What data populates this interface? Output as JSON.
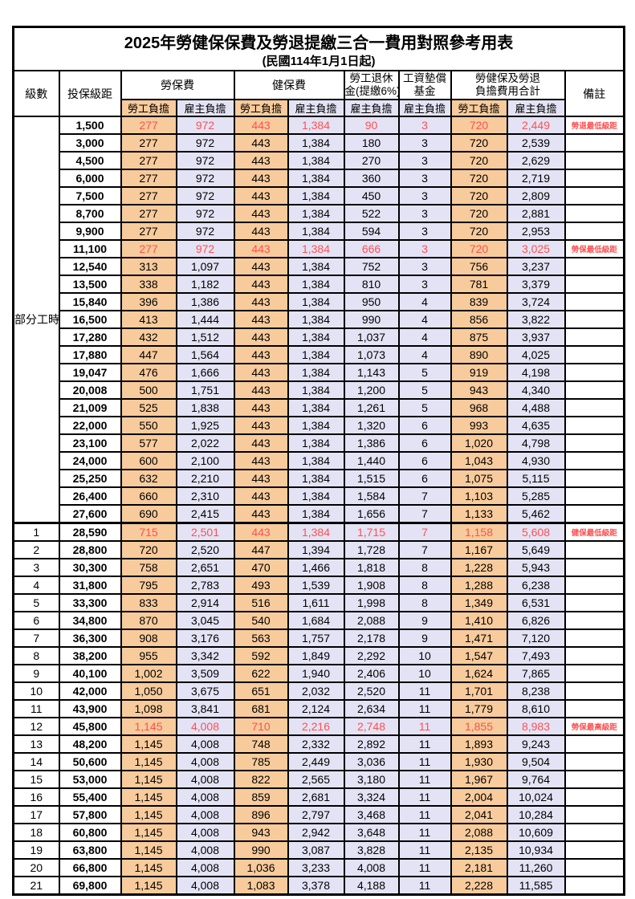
{
  "title": "2025年勞健保保費及勞退提繳三合一費用對照參考用表",
  "subtitle": "(民國114年1月1日起)",
  "colors": {
    "employee_fill": "#F8CB9C",
    "employer_fill": "#E4E3F5",
    "highlight_text": "#FF5050",
    "border": "#000000",
    "background": "#FFFFFF"
  },
  "header": {
    "level": "級數",
    "bracket": "投保級距",
    "labor_insurance": "勞保費",
    "health_insurance": "健保費",
    "pension_line1": "勞工退休",
    "pension_line2": "金(提繳6%)",
    "wage_fund_line1": "工資墊償",
    "wage_fund_line2": "基金",
    "total_line1": "勞健保及勞退",
    "total_line2": "負擔費用合計",
    "note": "備註",
    "employee_label": "勞工負擔",
    "employer_label": "雇主負擔"
  },
  "part_time_label": "部分工時",
  "part_time_rowspan": 23,
  "rows": [
    {
      "level": "",
      "bracket": "1,500",
      "values": [
        "277",
        "972",
        "443",
        "1,384",
        "90",
        "3",
        "720",
        "2,449"
      ],
      "note": "勞退最低級距",
      "highlight": true
    },
    {
      "level": "",
      "bracket": "3,000",
      "values": [
        "277",
        "972",
        "443",
        "1,384",
        "180",
        "3",
        "720",
        "2,539"
      ],
      "note": "",
      "highlight": false
    },
    {
      "level": "",
      "bracket": "4,500",
      "values": [
        "277",
        "972",
        "443",
        "1,384",
        "270",
        "3",
        "720",
        "2,629"
      ],
      "note": "",
      "highlight": false
    },
    {
      "level": "",
      "bracket": "6,000",
      "values": [
        "277",
        "972",
        "443",
        "1,384",
        "360",
        "3",
        "720",
        "2,719"
      ],
      "note": "",
      "highlight": false
    },
    {
      "level": "",
      "bracket": "7,500",
      "values": [
        "277",
        "972",
        "443",
        "1,384",
        "450",
        "3",
        "720",
        "2,809"
      ],
      "note": "",
      "highlight": false
    },
    {
      "level": "",
      "bracket": "8,700",
      "values": [
        "277",
        "972",
        "443",
        "1,384",
        "522",
        "3",
        "720",
        "2,881"
      ],
      "note": "",
      "highlight": false
    },
    {
      "level": "",
      "bracket": "9,900",
      "values": [
        "277",
        "972",
        "443",
        "1,384",
        "594",
        "3",
        "720",
        "2,953"
      ],
      "note": "",
      "highlight": false
    },
    {
      "level": "",
      "bracket": "11,100",
      "values": [
        "277",
        "972",
        "443",
        "1,384",
        "666",
        "3",
        "720",
        "3,025"
      ],
      "note": "勞保最低級距",
      "highlight": true
    },
    {
      "level": "",
      "bracket": "12,540",
      "values": [
        "313",
        "1,097",
        "443",
        "1,384",
        "752",
        "3",
        "756",
        "3,237"
      ],
      "note": "",
      "highlight": false
    },
    {
      "level": "",
      "bracket": "13,500",
      "values": [
        "338",
        "1,182",
        "443",
        "1,384",
        "810",
        "3",
        "781",
        "3,379"
      ],
      "note": "",
      "highlight": false
    },
    {
      "level": "",
      "bracket": "15,840",
      "values": [
        "396",
        "1,386",
        "443",
        "1,384",
        "950",
        "4",
        "839",
        "3,724"
      ],
      "note": "",
      "highlight": false
    },
    {
      "level": "",
      "bracket": "16,500",
      "values": [
        "413",
        "1,444",
        "443",
        "1,384",
        "990",
        "4",
        "856",
        "3,822"
      ],
      "note": "",
      "highlight": false
    },
    {
      "level": "",
      "bracket": "17,280",
      "values": [
        "432",
        "1,512",
        "443",
        "1,384",
        "1,037",
        "4",
        "875",
        "3,937"
      ],
      "note": "",
      "highlight": false
    },
    {
      "level": "",
      "bracket": "17,880",
      "values": [
        "447",
        "1,564",
        "443",
        "1,384",
        "1,073",
        "4",
        "890",
        "4,025"
      ],
      "note": "",
      "highlight": false
    },
    {
      "level": "",
      "bracket": "19,047",
      "values": [
        "476",
        "1,666",
        "443",
        "1,384",
        "1,143",
        "5",
        "919",
        "4,198"
      ],
      "note": "",
      "highlight": false
    },
    {
      "level": "",
      "bracket": "20,008",
      "values": [
        "500",
        "1,751",
        "443",
        "1,384",
        "1,200",
        "5",
        "943",
        "4,340"
      ],
      "note": "",
      "highlight": false
    },
    {
      "level": "",
      "bracket": "21,009",
      "values": [
        "525",
        "1,838",
        "443",
        "1,384",
        "1,261",
        "5",
        "968",
        "4,488"
      ],
      "note": "",
      "highlight": false
    },
    {
      "level": "",
      "bracket": "22,000",
      "values": [
        "550",
        "1,925",
        "443",
        "1,384",
        "1,320",
        "6",
        "993",
        "4,635"
      ],
      "note": "",
      "highlight": false
    },
    {
      "level": "",
      "bracket": "23,100",
      "values": [
        "577",
        "2,022",
        "443",
        "1,384",
        "1,386",
        "6",
        "1,020",
        "4,798"
      ],
      "note": "",
      "highlight": false
    },
    {
      "level": "",
      "bracket": "24,000",
      "values": [
        "600",
        "2,100",
        "443",
        "1,384",
        "1,440",
        "6",
        "1,043",
        "4,930"
      ],
      "note": "",
      "highlight": false
    },
    {
      "level": "",
      "bracket": "25,250",
      "values": [
        "632",
        "2,210",
        "443",
        "1,384",
        "1,515",
        "6",
        "1,075",
        "5,115"
      ],
      "note": "",
      "highlight": false
    },
    {
      "level": "",
      "bracket": "26,400",
      "values": [
        "660",
        "2,310",
        "443",
        "1,384",
        "1,584",
        "7",
        "1,103",
        "5,285"
      ],
      "note": "",
      "highlight": false
    },
    {
      "level": "",
      "bracket": "27,600",
      "values": [
        "690",
        "2,415",
        "443",
        "1,384",
        "1,656",
        "7",
        "1,133",
        "5,462"
      ],
      "note": "",
      "highlight": false
    },
    {
      "level": "1",
      "bracket": "28,590",
      "values": [
        "715",
        "2,501",
        "443",
        "1,384",
        "1,715",
        "7",
        "1,158",
        "5,608"
      ],
      "note": "健保最低級距",
      "highlight": true
    },
    {
      "level": "2",
      "bracket": "28,800",
      "values": [
        "720",
        "2,520",
        "447",
        "1,394",
        "1,728",
        "7",
        "1,167",
        "5,649"
      ],
      "note": "",
      "highlight": false
    },
    {
      "level": "3",
      "bracket": "30,300",
      "values": [
        "758",
        "2,651",
        "470",
        "1,466",
        "1,818",
        "8",
        "1,228",
        "5,943"
      ],
      "note": "",
      "highlight": false
    },
    {
      "level": "4",
      "bracket": "31,800",
      "values": [
        "795",
        "2,783",
        "493",
        "1,539",
        "1,908",
        "8",
        "1,288",
        "6,238"
      ],
      "note": "",
      "highlight": false
    },
    {
      "level": "5",
      "bracket": "33,300",
      "values": [
        "833",
        "2,914",
        "516",
        "1,611",
        "1,998",
        "8",
        "1,349",
        "6,531"
      ],
      "note": "",
      "highlight": false
    },
    {
      "level": "6",
      "bracket": "34,800",
      "values": [
        "870",
        "3,045",
        "540",
        "1,684",
        "2,088",
        "9",
        "1,410",
        "6,826"
      ],
      "note": "",
      "highlight": false
    },
    {
      "level": "7",
      "bracket": "36,300",
      "values": [
        "908",
        "3,176",
        "563",
        "1,757",
        "2,178",
        "9",
        "1,471",
        "7,120"
      ],
      "note": "",
      "highlight": false
    },
    {
      "level": "8",
      "bracket": "38,200",
      "values": [
        "955",
        "3,342",
        "592",
        "1,849",
        "2,292",
        "10",
        "1,547",
        "7,493"
      ],
      "note": "",
      "highlight": false
    },
    {
      "level": "9",
      "bracket": "40,100",
      "values": [
        "1,002",
        "3,509",
        "622",
        "1,940",
        "2,406",
        "10",
        "1,624",
        "7,865"
      ],
      "note": "",
      "highlight": false
    },
    {
      "level": "10",
      "bracket": "42,000",
      "values": [
        "1,050",
        "3,675",
        "651",
        "2,032",
        "2,520",
        "11",
        "1,701",
        "8,238"
      ],
      "note": "",
      "highlight": false
    },
    {
      "level": "11",
      "bracket": "43,900",
      "values": [
        "1,098",
        "3,841",
        "681",
        "2,124",
        "2,634",
        "11",
        "1,779",
        "8,610"
      ],
      "note": "",
      "highlight": false
    },
    {
      "level": "12",
      "bracket": "45,800",
      "values": [
        "1,145",
        "4,008",
        "710",
        "2,216",
        "2,748",
        "11",
        "1,855",
        "8,983"
      ],
      "note": "勞保最高級距",
      "highlight": true
    },
    {
      "level": "13",
      "bracket": "48,200",
      "values": [
        "1,145",
        "4,008",
        "748",
        "2,332",
        "2,892",
        "11",
        "1,893",
        "9,243"
      ],
      "note": "",
      "highlight": false
    },
    {
      "level": "14",
      "bracket": "50,600",
      "values": [
        "1,145",
        "4,008",
        "785",
        "2,449",
        "3,036",
        "11",
        "1,930",
        "9,504"
      ],
      "note": "",
      "highlight": false
    },
    {
      "level": "15",
      "bracket": "53,000",
      "values": [
        "1,145",
        "4,008",
        "822",
        "2,565",
        "3,180",
        "11",
        "1,967",
        "9,764"
      ],
      "note": "",
      "highlight": false
    },
    {
      "level": "16",
      "bracket": "55,400",
      "values": [
        "1,145",
        "4,008",
        "859",
        "2,681",
        "3,324",
        "11",
        "2,004",
        "10,024"
      ],
      "note": "",
      "highlight": false
    },
    {
      "level": "17",
      "bracket": "57,800",
      "values": [
        "1,145",
        "4,008",
        "896",
        "2,797",
        "3,468",
        "11",
        "2,041",
        "10,284"
      ],
      "note": "",
      "highlight": false
    },
    {
      "level": "18",
      "bracket": "60,800",
      "values": [
        "1,145",
        "4,008",
        "943",
        "2,942",
        "3,648",
        "11",
        "2,088",
        "10,609"
      ],
      "note": "",
      "highlight": false
    },
    {
      "level": "19",
      "bracket": "63,800",
      "values": [
        "1,145",
        "4,008",
        "990",
        "3,087",
        "3,828",
        "11",
        "2,135",
        "10,934"
      ],
      "note": "",
      "highlight": false
    },
    {
      "level": "20",
      "bracket": "66,800",
      "values": [
        "1,145",
        "4,008",
        "1,036",
        "3,233",
        "4,008",
        "11",
        "2,181",
        "11,260"
      ],
      "note": "",
      "highlight": false
    },
    {
      "level": "21",
      "bracket": "69,800",
      "values": [
        "1,145",
        "4,008",
        "1,083",
        "3,378",
        "4,188",
        "11",
        "2,228",
        "11,585"
      ],
      "note": "",
      "highlight": false
    }
  ]
}
